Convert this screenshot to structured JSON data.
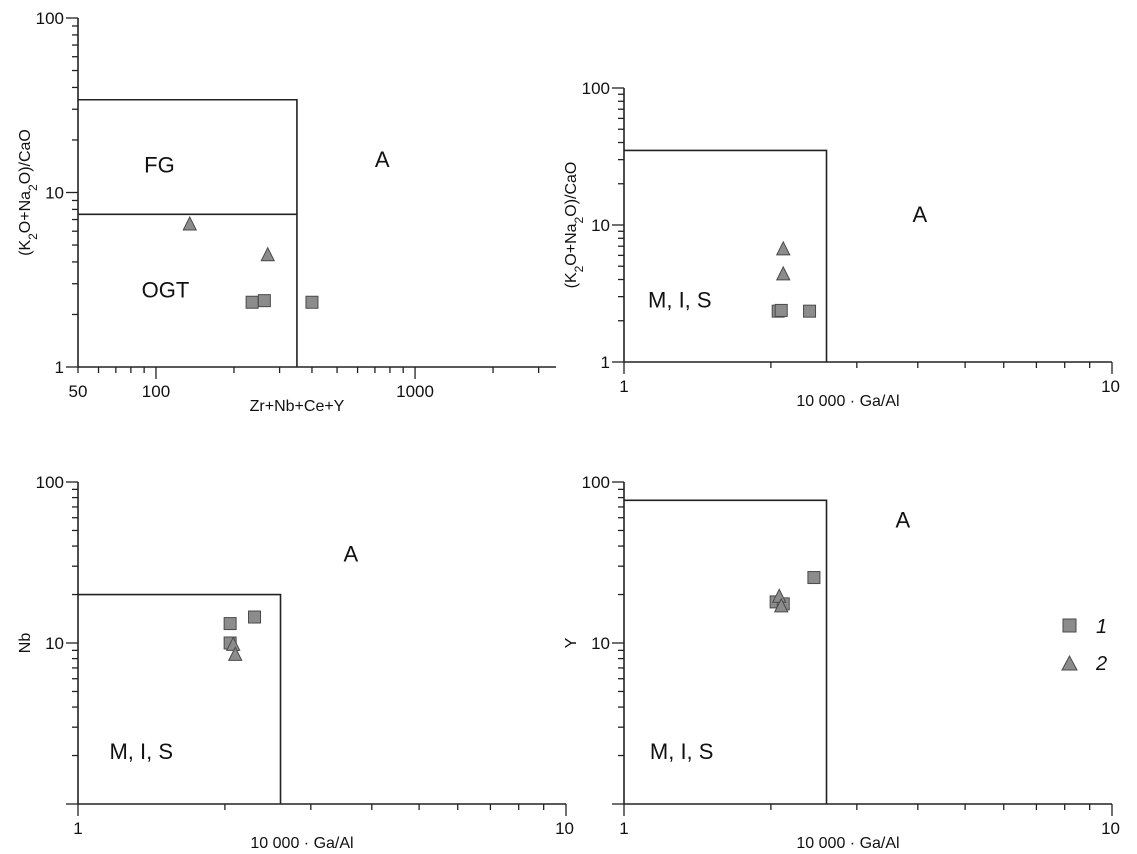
{
  "colors": {
    "marker_fill": "#8c8c8c",
    "marker_stroke": "#4a4a4a",
    "line": "#222222"
  },
  "legend": [
    {
      "symbol": "square",
      "label": "1"
    },
    {
      "symbol": "triangle",
      "label": "2"
    }
  ],
  "chart_data": [
    {
      "type": "scatter",
      "xscale": "log",
      "yscale": "log",
      "xlim": [
        50,
        3500
      ],
      "ylim": [
        1,
        100
      ],
      "xlabel": "Zr+Nb+Ce+Y",
      "ylabel": "(K2O+Na2O)/CaO",
      "xtick_labels": [
        {
          "v": 50,
          "t": "50"
        },
        {
          "v": 100,
          "t": "100"
        },
        {
          "v": 1000,
          "t": "1000"
        }
      ],
      "ytick_labels": [
        {
          "v": 1,
          "t": "1"
        },
        {
          "v": 10,
          "t": "10"
        },
        {
          "v": 100,
          "t": "100"
        }
      ],
      "boundaries": [
        [
          [
            50,
            34
          ],
          [
            350,
            34
          ],
          [
            350,
            1
          ]
        ],
        [
          [
            50,
            7.5
          ],
          [
            350,
            7.5
          ]
        ]
      ],
      "fields": [
        {
          "label": "FG",
          "x": 90,
          "y": 13
        },
        {
          "label": "OGT",
          "x": 88,
          "y": 2.5
        },
        {
          "label": "A",
          "x": 700,
          "y": 14
        }
      ],
      "series": [
        {
          "name": "1",
          "symbol": "square",
          "points": [
            [
              235,
              2.35
            ],
            [
              262,
              2.4
            ],
            [
              400,
              2.35
            ]
          ]
        },
        {
          "name": "2",
          "symbol": "triangle",
          "points": [
            [
              135,
              6.6
            ],
            [
              270,
              4.4
            ]
          ]
        }
      ]
    },
    {
      "type": "scatter",
      "xscale": "log",
      "yscale": "log",
      "xlim": [
        1,
        10
      ],
      "ylim": [
        1,
        100
      ],
      "xlabel": "10 000 · Ga/Al",
      "ylabel": "(K2O+Na2O)/CaO",
      "xtick_labels": [
        {
          "v": 1,
          "t": "1"
        },
        {
          "v": 10,
          "t": "10"
        }
      ],
      "ytick_labels": [
        {
          "v": 1,
          "t": "1"
        },
        {
          "v": 10,
          "t": "10"
        },
        {
          "v": 100,
          "t": "100"
        }
      ],
      "boundaries": [
        [
          [
            1,
            35
          ],
          [
            2.6,
            35
          ],
          [
            2.6,
            1
          ]
        ]
      ],
      "fields": [
        {
          "label": "M, I, S",
          "x": 1.12,
          "y": 2.5
        },
        {
          "label": "A",
          "x": 3.9,
          "y": 10.5
        }
      ],
      "series": [
        {
          "name": "1",
          "symbol": "square",
          "points": [
            [
              2.07,
              2.35
            ],
            [
              2.1,
              2.38
            ],
            [
              2.4,
              2.35
            ]
          ]
        },
        {
          "name": "2",
          "symbol": "triangle",
          "points": [
            [
              2.12,
              6.7
            ],
            [
              2.12,
              4.4
            ]
          ]
        }
      ]
    },
    {
      "type": "scatter",
      "xscale": "log",
      "yscale": "log",
      "xlim": [
        1,
        10
      ],
      "ylim": [
        1,
        100
      ],
      "xlabel": "10 000 · Ga/Al",
      "ylabel": "Nb",
      "xtick_labels": [
        {
          "v": 1,
          "t": "1"
        },
        {
          "v": 10,
          "t": "10"
        }
      ],
      "ytick_labels": [
        {
          "v": 10,
          "t": "10"
        },
        {
          "v": 100,
          "t": "100"
        }
      ],
      "boundaries": [
        [
          [
            1,
            20
          ],
          [
            2.6,
            20
          ],
          [
            2.6,
            1
          ]
        ]
      ],
      "fields": [
        {
          "label": "M, I, S",
          "x": 1.16,
          "y": 1.9
        },
        {
          "label": "A",
          "x": 3.5,
          "y": 32
        }
      ],
      "series": [
        {
          "name": "1",
          "symbol": "square",
          "points": [
            [
              2.05,
              13.2
            ],
            [
              2.3,
              14.5
            ],
            [
              2.05,
              10.0
            ]
          ]
        },
        {
          "name": "2",
          "symbol": "triangle",
          "points": [
            [
              2.08,
              9.8
            ],
            [
              2.1,
              8.5
            ]
          ]
        }
      ]
    },
    {
      "type": "scatter",
      "xscale": "log",
      "yscale": "log",
      "xlim": [
        1,
        10
      ],
      "ylim": [
        1,
        100
      ],
      "xlabel": "10 000 · Ga/Al",
      "ylabel": "Y",
      "xtick_labels": [
        {
          "v": 1,
          "t": "1"
        },
        {
          "v": 10,
          "t": "10"
        }
      ],
      "ytick_labels": [
        {
          "v": 10,
          "t": "10"
        },
        {
          "v": 100,
          "t": "100"
        }
      ],
      "boundaries": [
        [
          [
            1,
            77
          ],
          [
            2.6,
            77
          ],
          [
            2.6,
            1
          ]
        ]
      ],
      "fields": [
        {
          "label": "M, I, S",
          "x": 1.13,
          "y": 1.9
        },
        {
          "label": "A",
          "x": 3.6,
          "y": 52
        }
      ],
      "series": [
        {
          "name": "1",
          "symbol": "square",
          "points": [
            [
              2.05,
              18.0
            ],
            [
              2.12,
              17.5
            ],
            [
              2.45,
              25.5
            ]
          ]
        },
        {
          "name": "2",
          "symbol": "triangle",
          "points": [
            [
              2.08,
              19.5
            ],
            [
              2.1,
              17.0
            ]
          ]
        }
      ]
    }
  ]
}
